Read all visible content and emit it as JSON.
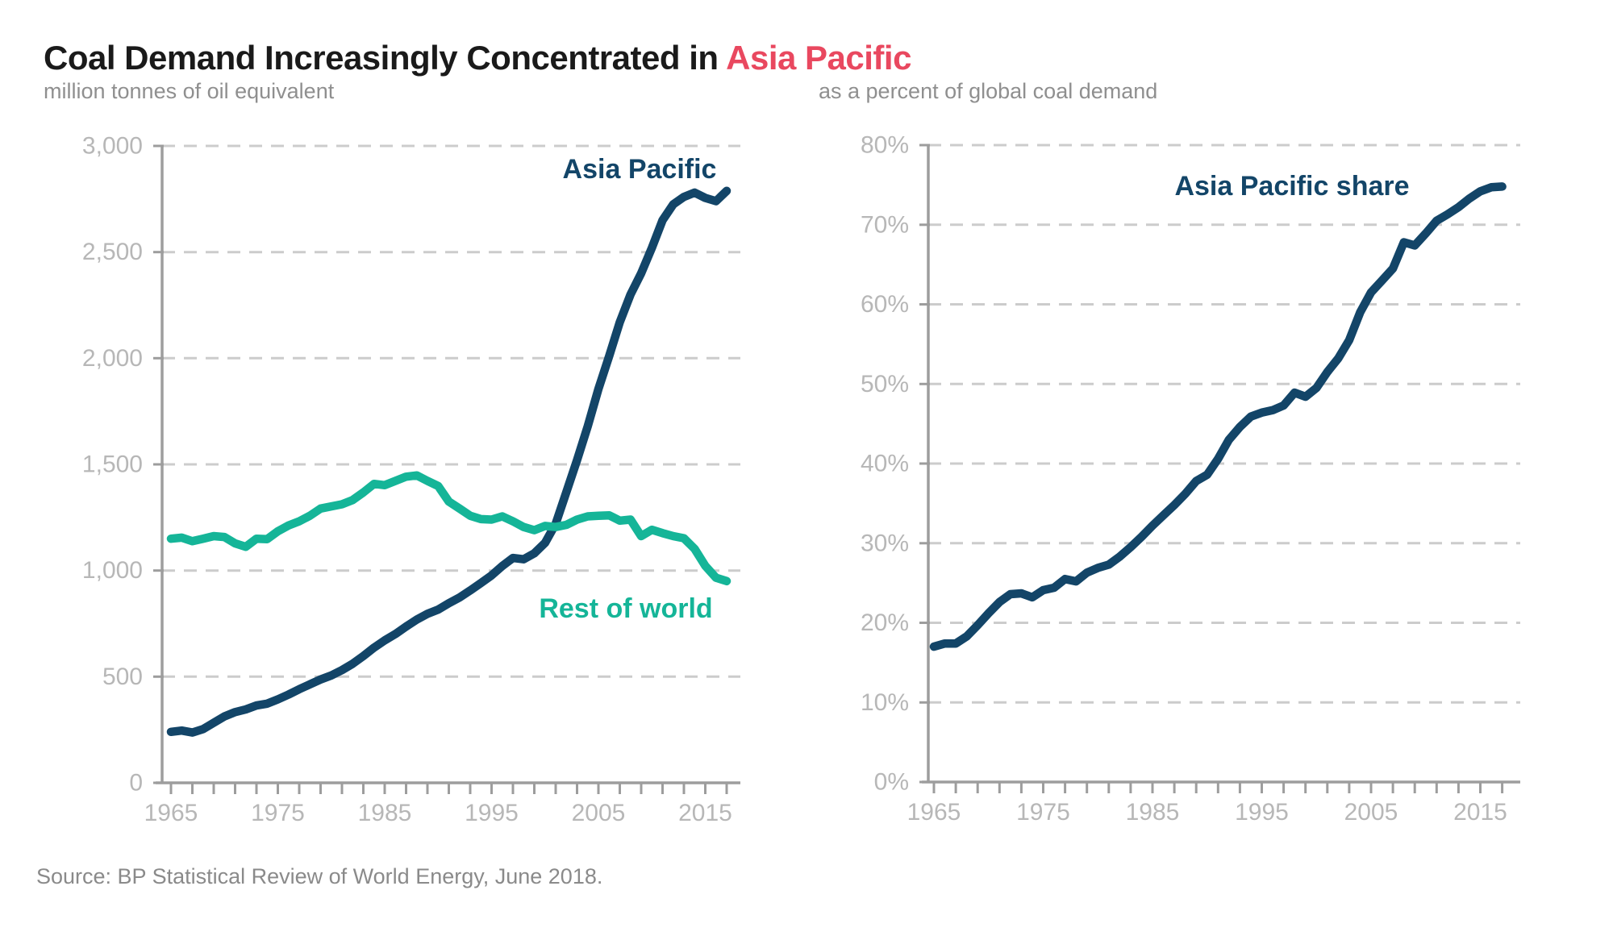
{
  "title": {
    "black": "Coal Demand Increasingly Concentrated in ",
    "accent": "Asia Pacific"
  },
  "source": "Source: BP Statistical Review of World Energy, June 2018.",
  "colors": {
    "navy": "#134568",
    "teal": "#15b598",
    "accent_pink": "#e9485f",
    "grid": "#cccccc",
    "axis": "#9d9d9d",
    "tick_label": "#b7b7b7",
    "subtitle": "#8f8f8f",
    "source_text": "#8a8a8a"
  },
  "chart_data": [
    {
      "id": "demand",
      "type": "line",
      "subtitle": "million tonnes of oil equivalent",
      "grid": "horizontal-dashed",
      "legend_position": "inline-annotations",
      "ylim": [
        0,
        3000
      ],
      "x_minor_step": 2,
      "x_tick_labels": [
        1965,
        1975,
        1985,
        1995,
        2005,
        2015
      ],
      "y_ticks": [
        {
          "value": 0,
          "label": "0"
        },
        {
          "value": 500,
          "label": "500"
        },
        {
          "value": 1000,
          "label": "1,000"
        },
        {
          "value": 1500,
          "label": "1,500"
        },
        {
          "value": 2000,
          "label": "2,000"
        },
        {
          "value": 2500,
          "label": "2,500"
        },
        {
          "value": 3000,
          "label": "3,000"
        }
      ],
      "x": [
        1965,
        1966,
        1967,
        1968,
        1969,
        1970,
        1971,
        1972,
        1973,
        1974,
        1975,
        1976,
        1977,
        1978,
        1979,
        1980,
        1981,
        1982,
        1983,
        1984,
        1985,
        1986,
        1987,
        1988,
        1989,
        1990,
        1991,
        1992,
        1993,
        1994,
        1995,
        1996,
        1997,
        1998,
        1999,
        2000,
        2001,
        2002,
        2003,
        2004,
        2005,
        2006,
        2007,
        2008,
        2009,
        2010,
        2011,
        2012,
        2013,
        2014,
        2015,
        2016,
        2017
      ],
      "series": [
        {
          "name": "Asia Pacific",
          "color_key": "navy",
          "values": [
            240,
            246,
            237,
            253,
            283,
            313,
            333,
            346,
            364,
            373,
            393,
            416,
            441,
            464,
            487,
            506,
            531,
            561,
            597,
            637,
            671,
            701,
            736,
            769,
            796,
            816,
            846,
            873,
            906,
            941,
            977,
            1021,
            1059,
            1053,
            1081,
            1130,
            1220,
            1370,
            1520,
            1680,
            1855,
            2010,
            2170,
            2300,
            2400,
            2520,
            2650,
            2725,
            2760,
            2780,
            2755,
            2740,
            2788
          ]
        },
        {
          "name": "Rest of world",
          "color_key": "teal",
          "values": [
            1150,
            1155,
            1138,
            1150,
            1162,
            1158,
            1128,
            1112,
            1150,
            1148,
            1185,
            1212,
            1232,
            1258,
            1292,
            1302,
            1312,
            1332,
            1368,
            1408,
            1402,
            1422,
            1442,
            1448,
            1422,
            1398,
            1325,
            1292,
            1258,
            1242,
            1240,
            1255,
            1232,
            1205,
            1190,
            1210,
            1205,
            1215,
            1240,
            1255,
            1258,
            1260,
            1235,
            1240,
            1162,
            1192,
            1176,
            1162,
            1152,
            1102,
            1022,
            966,
            950
          ]
        }
      ]
    },
    {
      "id": "share",
      "type": "line",
      "subtitle": "as a percent of global coal demand",
      "grid": "horizontal-dashed",
      "legend_position": "inline-annotations",
      "ylim": [
        0,
        80
      ],
      "x_minor_step": 2,
      "x_tick_labels": [
        1965,
        1975,
        1985,
        1995,
        2005,
        2015
      ],
      "y_ticks": [
        {
          "value": 0,
          "label": "0%"
        },
        {
          "value": 10,
          "label": "10%"
        },
        {
          "value": 20,
          "label": "20%"
        },
        {
          "value": 30,
          "label": "30%"
        },
        {
          "value": 40,
          "label": "40%"
        },
        {
          "value": 50,
          "label": "50%"
        },
        {
          "value": 60,
          "label": "60%"
        },
        {
          "value": 70,
          "label": "70%"
        },
        {
          "value": 80,
          "label": "80%"
        }
      ],
      "x": [
        1965,
        1966,
        1967,
        1968,
        1969,
        1970,
        1971,
        1972,
        1973,
        1974,
        1975,
        1976,
        1977,
        1978,
        1979,
        1980,
        1981,
        1982,
        1983,
        1984,
        1985,
        1986,
        1987,
        1988,
        1989,
        1990,
        1991,
        1992,
        1993,
        1994,
        1995,
        1996,
        1997,
        1998,
        1999,
        2000,
        2001,
        2002,
        2003,
        2004,
        2005,
        2006,
        2007,
        2008,
        2009,
        2010,
        2011,
        2012,
        2013,
        2014,
        2015,
        2016,
        2017
      ],
      "series": [
        {
          "name": "Asia Pacific share",
          "color_key": "navy",
          "values": [
            17.0,
            17.4,
            17.4,
            18.3,
            19.7,
            21.2,
            22.6,
            23.6,
            23.7,
            23.2,
            24.1,
            24.4,
            25.5,
            25.2,
            26.3,
            26.9,
            27.3,
            28.3,
            29.5,
            30.8,
            32.2,
            33.5,
            34.8,
            36.2,
            37.8,
            38.6,
            40.6,
            43.0,
            44.6,
            45.9,
            46.4,
            46.7,
            47.3,
            48.9,
            48.4,
            49.5,
            51.5,
            53.2,
            55.5,
            59.0,
            61.5,
            63.0,
            64.5,
            67.8,
            67.4,
            68.9,
            70.5,
            71.3,
            72.2,
            73.3,
            74.2,
            74.7,
            74.8
          ]
        }
      ]
    }
  ]
}
